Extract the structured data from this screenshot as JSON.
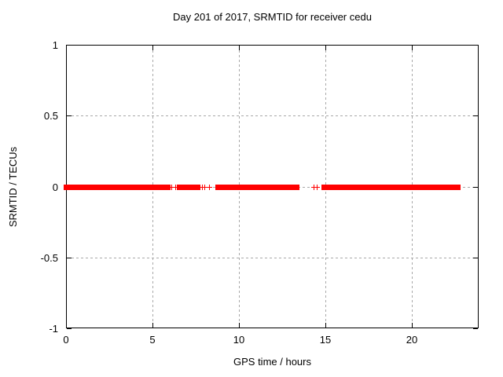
{
  "chart_data": {
    "type": "scatter",
    "title": "Day 201 of 2017, SRMTID for receiver cedu",
    "xlabel": "GPS time / hours",
    "ylabel": "SRMTID / TECUs",
    "xlim": [
      0,
      23.86
    ],
    "ylim": [
      -1,
      1
    ],
    "xticks": [
      0,
      5,
      10,
      15,
      20
    ],
    "yticks": [
      -1,
      -0.5,
      0,
      0.5,
      1
    ],
    "grid": true,
    "legend": "none",
    "marker": "plus",
    "marker_color": "#ff0000",
    "grid_color": "#a8a8a8",
    "axis_color": "#000000",
    "y_value": 0,
    "dense_runs_x_hours": [
      [
        0,
        2.14
      ],
      [
        2.18,
        5.91
      ],
      [
        6.55,
        7.64
      ],
      [
        8.77,
        9.02
      ],
      [
        9.09,
        11.41
      ],
      [
        11.45,
        12.64
      ],
      [
        12.77,
        13.09
      ],
      [
        13.14,
        13.36
      ],
      [
        14.91,
        22.68
      ]
    ],
    "isolated_points_x_hours": [
      5.95,
      6.09,
      6.32,
      7.7,
      7.86,
      8.0,
      8.27,
      14.32,
      14.5
    ]
  }
}
